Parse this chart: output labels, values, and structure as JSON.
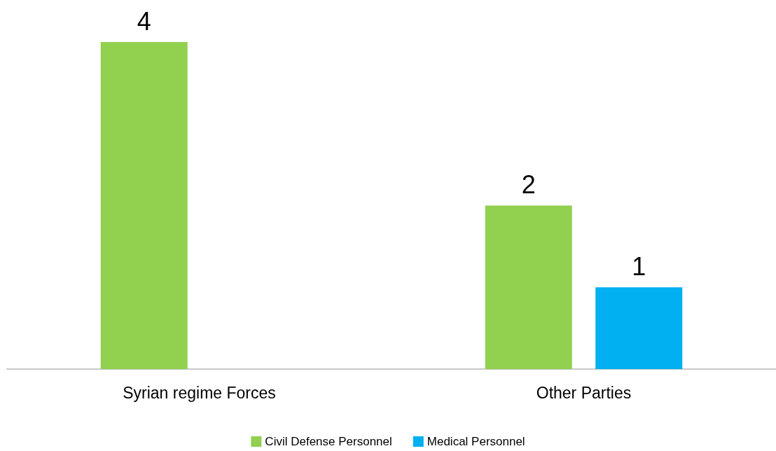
{
  "chart_data": {
    "type": "bar",
    "categories": [
      "Syrian regime Forces",
      "Other Parties"
    ],
    "series": [
      {
        "name": "Civil Defense Personnel",
        "color": "#92d050",
        "values": [
          4,
          2
        ]
      },
      {
        "name": "Medical Personnel",
        "color": "#00b0f0",
        "values": [
          null,
          1
        ]
      }
    ],
    "data_labels": true,
    "legend": "bottom",
    "grid": false
  }
}
